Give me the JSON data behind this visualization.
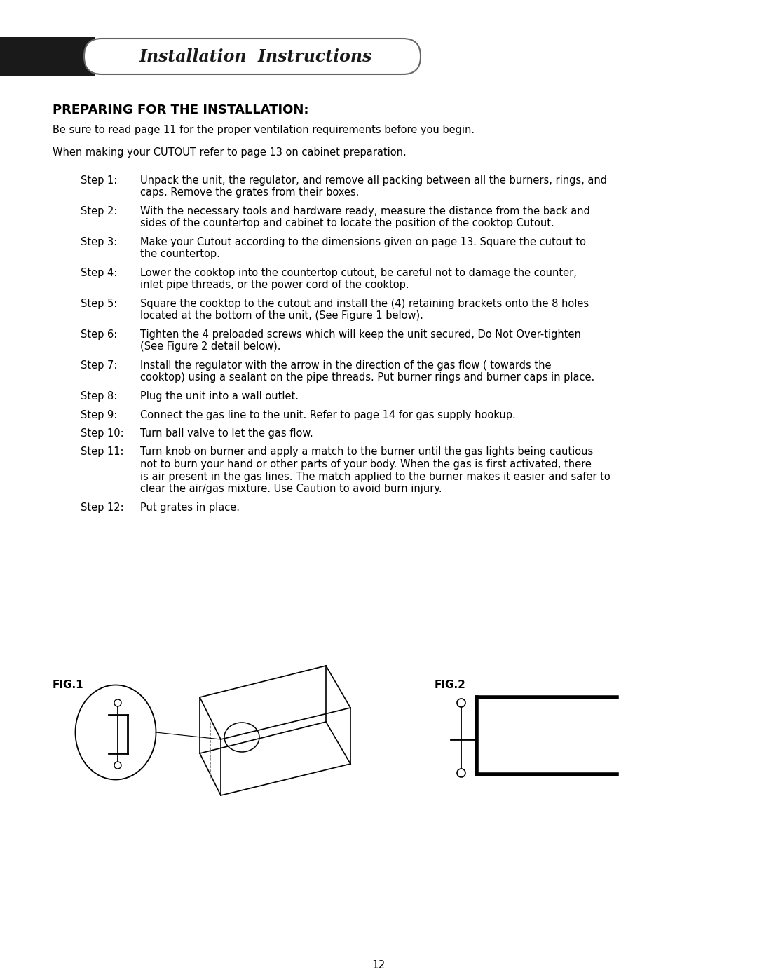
{
  "bg_color": "#ffffff",
  "header_bg": "#1a1a1a",
  "header_text": "Installation  Instructions",
  "title": "PREPARING FOR THE INSTALLATION:",
  "intro_lines": [
    "Be sure to read page 11 for the proper ventilation requirements before you begin.",
    "When making your CUTOUT refer to page 13 on cabinet preparation."
  ],
  "steps": [
    [
      "Step 1:",
      "Unpack the unit, the regulator, and remove all packing between all the burners, rings, and\ncaps. Remove the grates from their boxes."
    ],
    [
      "Step 2:",
      "With the necessary tools and hardware ready, measure the distance from the back and\nsides of the countertop and cabinet to locate the position of the cooktop Cutout."
    ],
    [
      "Step 3:",
      "Make your Cutout according to the dimensions given on page 13. Square the cutout to\nthe countertop."
    ],
    [
      "Step 4:",
      "Lower the cooktop into the countertop cutout, be careful not to damage the counter,\ninlet pipe threads, or the power cord of the cooktop."
    ],
    [
      "Step 5:",
      "Square the cooktop to the cutout and install the (4) retaining brackets onto the 8 holes\nlocated at the bottom of the unit, (See Figure 1 below)."
    ],
    [
      "Step 6:",
      "Tighten the 4 preloaded screws which will keep the unit secured, Do Not Over-tighten\n(See Figure 2 detail below)."
    ],
    [
      "Step 7:",
      "Install the regulator with the arrow in the direction of the gas flow ( towards the\ncooktop) using a sealant on the pipe threads. Put burner rings and burner caps in place."
    ],
    [
      "Step 8:",
      "Plug the unit into a wall outlet."
    ],
    [
      "Step 9:",
      "Connect the gas line to the unit. Refer to page 14 for gas supply hookup."
    ],
    [
      "Step 10:",
      "Turn ball valve to let the gas flow."
    ],
    [
      "Step 11:",
      "Turn knob on burner and apply a match to the burner until the gas lights being cautious\nnot to burn your hand or other parts of your body. When the gas is first activated, there\nis air present in the gas lines. The match applied to the burner makes it easier and safer to\nclear the air/gas mixture. Use Caution to avoid burn injury."
    ],
    [
      "Step 12:",
      "Put grates in place."
    ]
  ],
  "fig1_label": "FIG.1",
  "fig2_label": "FIG.2",
  "page_number": "12",
  "text_color": "#000000"
}
